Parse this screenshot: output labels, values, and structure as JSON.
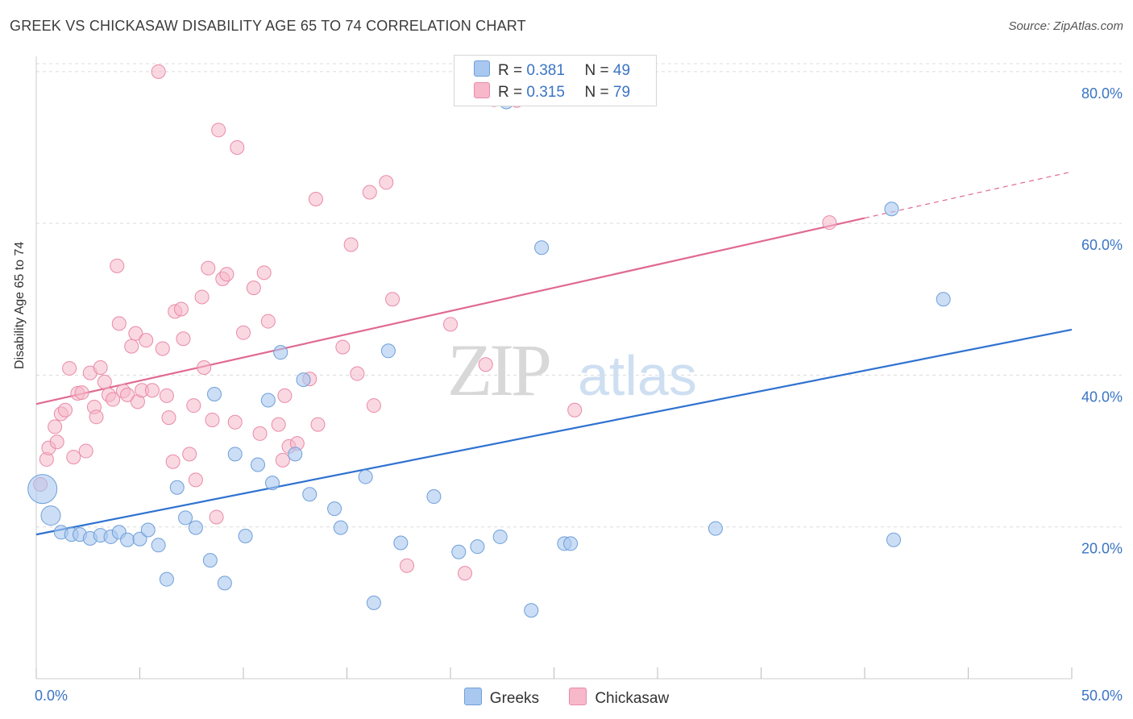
{
  "title": "GREEK VS CHICKASAW DISABILITY AGE 65 TO 74 CORRELATION CHART",
  "source": "Source: ZipAtlas.com",
  "watermark": {
    "zip": "ZIP",
    "atlas": "atlas"
  },
  "legend": {
    "rows": [
      {
        "r_label": "R =",
        "r_value": "0.381",
        "n_label": "N =",
        "n_value": "49"
      },
      {
        "r_label": "R =",
        "r_value": "0.315",
        "n_label": "N =",
        "n_value": "79"
      }
    ]
  },
  "bottom_legend": {
    "greeks": "Greeks",
    "chickasaw": "Chickasaw"
  },
  "colors": {
    "greeks_fill": "#a9c8f0",
    "greeks_stroke": "#6f9fd8",
    "greeks_line": "#2f72d0",
    "chickasaw_fill": "#f6b8ca",
    "chickasaw_stroke": "#e98aa8",
    "chickasaw_line": "#e06a92",
    "axis_text": "#3a74c4",
    "grid": "#dcdcdc"
  },
  "chart_data": {
    "type": "scatter",
    "title": "GREEK VS CHICKASAW DISABILITY AGE 65 TO 74 CORRELATION CHART",
    "xlabel": "",
    "ylabel": "Disability Age 65 to 74",
    "xlim": [
      0,
      50
    ],
    "ylim": [
      0,
      82
    ],
    "x_tick_labels": [
      "0.0%",
      "50.0%"
    ],
    "y_ticks": [
      20,
      40,
      60,
      80
    ],
    "y_tick_labels": [
      "20.0%",
      "40.0%",
      "60.0%",
      "80.0%"
    ],
    "grid": true,
    "legend_position": "top-center",
    "series": [
      {
        "name": "Greeks",
        "r": 0.381,
        "n": 49,
        "trend": {
          "x0": 0,
          "y0": 19.0,
          "x1": 50,
          "y1": 46.0
        },
        "points": [
          {
            "x": 0.3,
            "y": 25.0,
            "s": "big"
          },
          {
            "x": 0.7,
            "y": 21.5,
            "s": "mid"
          },
          {
            "x": 1.2,
            "y": 19.3
          },
          {
            "x": 1.7,
            "y": 19.0
          },
          {
            "x": 2.1,
            "y": 19.0
          },
          {
            "x": 2.6,
            "y": 18.5
          },
          {
            "x": 3.1,
            "y": 18.9
          },
          {
            "x": 3.6,
            "y": 18.7
          },
          {
            "x": 4.0,
            "y": 19.3
          },
          {
            "x": 4.4,
            "y": 18.3
          },
          {
            "x": 5.0,
            "y": 18.4
          },
          {
            "x": 5.4,
            "y": 19.6
          },
          {
            "x": 5.9,
            "y": 17.6
          },
          {
            "x": 6.3,
            "y": 13.1
          },
          {
            "x": 6.8,
            "y": 25.2
          },
          {
            "x": 7.2,
            "y": 21.2
          },
          {
            "x": 7.7,
            "y": 19.9
          },
          {
            "x": 8.4,
            "y": 15.6
          },
          {
            "x": 8.6,
            "y": 37.5
          },
          {
            "x": 9.1,
            "y": 12.6
          },
          {
            "x": 9.6,
            "y": 29.6
          },
          {
            "x": 10.1,
            "y": 18.8
          },
          {
            "x": 10.7,
            "y": 28.2
          },
          {
            "x": 11.2,
            "y": 36.7
          },
          {
            "x": 11.4,
            "y": 25.8
          },
          {
            "x": 11.8,
            "y": 43.0
          },
          {
            "x": 12.5,
            "y": 29.6
          },
          {
            "x": 12.9,
            "y": 39.4
          },
          {
            "x": 13.2,
            "y": 24.3
          },
          {
            "x": 14.4,
            "y": 22.4
          },
          {
            "x": 14.7,
            "y": 19.9
          },
          {
            "x": 15.9,
            "y": 26.6
          },
          {
            "x": 16.3,
            "y": 10.0
          },
          {
            "x": 17.0,
            "y": 43.2
          },
          {
            "x": 17.6,
            "y": 17.9
          },
          {
            "x": 19.2,
            "y": 24.0
          },
          {
            "x": 20.4,
            "y": 16.7
          },
          {
            "x": 21.3,
            "y": 17.4
          },
          {
            "x": 22.4,
            "y": 18.7
          },
          {
            "x": 22.7,
            "y": 76.0
          },
          {
            "x": 23.6,
            "y": 76.4
          },
          {
            "x": 23.9,
            "y": 9.0
          },
          {
            "x": 24.4,
            "y": 56.8
          },
          {
            "x": 25.5,
            "y": 17.8
          },
          {
            "x": 25.8,
            "y": 17.8
          },
          {
            "x": 32.8,
            "y": 19.8
          },
          {
            "x": 41.3,
            "y": 61.9
          },
          {
            "x": 41.4,
            "y": 18.3
          },
          {
            "x": 43.8,
            "y": 50.0
          }
        ]
      },
      {
        "name": "Chickasaw",
        "r": 0.315,
        "n": 79,
        "trend": {
          "x0": 0,
          "y0": 36.2,
          "x1": 40,
          "y1": 60.7
        },
        "trend_extension": {
          "x0": 40,
          "y0": 60.7,
          "x1": 50,
          "y1": 66.8
        },
        "points": [
          {
            "x": 0.2,
            "y": 25.6
          },
          {
            "x": 0.5,
            "y": 28.9
          },
          {
            "x": 0.6,
            "y": 30.4
          },
          {
            "x": 0.9,
            "y": 33.2
          },
          {
            "x": 1.0,
            "y": 31.2
          },
          {
            "x": 1.2,
            "y": 34.9
          },
          {
            "x": 1.4,
            "y": 35.4
          },
          {
            "x": 1.6,
            "y": 40.9
          },
          {
            "x": 1.8,
            "y": 29.2
          },
          {
            "x": 2.0,
            "y": 37.6
          },
          {
            "x": 2.2,
            "y": 37.7
          },
          {
            "x": 2.4,
            "y": 30.0
          },
          {
            "x": 2.6,
            "y": 40.3
          },
          {
            "x": 2.8,
            "y": 35.8
          },
          {
            "x": 2.9,
            "y": 34.5
          },
          {
            "x": 3.1,
            "y": 41.0
          },
          {
            "x": 3.3,
            "y": 39.1
          },
          {
            "x": 3.5,
            "y": 37.4
          },
          {
            "x": 3.7,
            "y": 36.8
          },
          {
            "x": 3.9,
            "y": 54.4
          },
          {
            "x": 4.0,
            "y": 46.8
          },
          {
            "x": 4.2,
            "y": 37.9
          },
          {
            "x": 4.4,
            "y": 37.4
          },
          {
            "x": 4.6,
            "y": 43.8
          },
          {
            "x": 4.8,
            "y": 45.5
          },
          {
            "x": 4.9,
            "y": 36.5
          },
          {
            "x": 5.1,
            "y": 38.0
          },
          {
            "x": 5.3,
            "y": 44.6
          },
          {
            "x": 5.6,
            "y": 38.0
          },
          {
            "x": 5.9,
            "y": 80.0
          },
          {
            "x": 6.1,
            "y": 43.5
          },
          {
            "x": 6.3,
            "y": 37.3
          },
          {
            "x": 6.4,
            "y": 34.4
          },
          {
            "x": 6.6,
            "y": 28.6
          },
          {
            "x": 6.7,
            "y": 48.4
          },
          {
            "x": 7.0,
            "y": 48.7
          },
          {
            "x": 7.1,
            "y": 44.8
          },
          {
            "x": 7.4,
            "y": 29.6
          },
          {
            "x": 7.6,
            "y": 36.0
          },
          {
            "x": 7.7,
            "y": 26.2
          },
          {
            "x": 8.0,
            "y": 50.3
          },
          {
            "x": 8.1,
            "y": 41.0
          },
          {
            "x": 8.3,
            "y": 54.1
          },
          {
            "x": 8.5,
            "y": 34.1
          },
          {
            "x": 8.7,
            "y": 21.3
          },
          {
            "x": 8.8,
            "y": 72.3
          },
          {
            "x": 9.0,
            "y": 52.7
          },
          {
            "x": 9.2,
            "y": 53.3
          },
          {
            "x": 9.6,
            "y": 33.8
          },
          {
            "x": 9.7,
            "y": 70.0
          },
          {
            "x": 10.0,
            "y": 45.6
          },
          {
            "x": 10.5,
            "y": 51.5
          },
          {
            "x": 10.8,
            "y": 32.3
          },
          {
            "x": 11.0,
            "y": 53.5
          },
          {
            "x": 11.2,
            "y": 47.1
          },
          {
            "x": 11.7,
            "y": 33.5
          },
          {
            "x": 11.9,
            "y": 28.8
          },
          {
            "x": 12.0,
            "y": 37.3
          },
          {
            "x": 12.2,
            "y": 30.6
          },
          {
            "x": 12.6,
            "y": 31.0
          },
          {
            "x": 13.2,
            "y": 39.5
          },
          {
            "x": 13.5,
            "y": 63.2
          },
          {
            "x": 13.6,
            "y": 33.5
          },
          {
            "x": 14.8,
            "y": 43.7
          },
          {
            "x": 15.2,
            "y": 57.2
          },
          {
            "x": 15.5,
            "y": 40.2
          },
          {
            "x": 16.1,
            "y": 64.1
          },
          {
            "x": 16.3,
            "y": 36.0
          },
          {
            "x": 16.9,
            "y": 65.4
          },
          {
            "x": 17.2,
            "y": 50.0
          },
          {
            "x": 17.9,
            "y": 14.9
          },
          {
            "x": 20.0,
            "y": 46.7
          },
          {
            "x": 20.7,
            "y": 13.9
          },
          {
            "x": 21.7,
            "y": 41.4
          },
          {
            "x": 22.1,
            "y": 76.3
          },
          {
            "x": 22.4,
            "y": 76.5
          },
          {
            "x": 23.2,
            "y": 76.2
          },
          {
            "x": 26.0,
            "y": 35.4
          },
          {
            "x": 38.3,
            "y": 60.1
          }
        ]
      }
    ]
  }
}
